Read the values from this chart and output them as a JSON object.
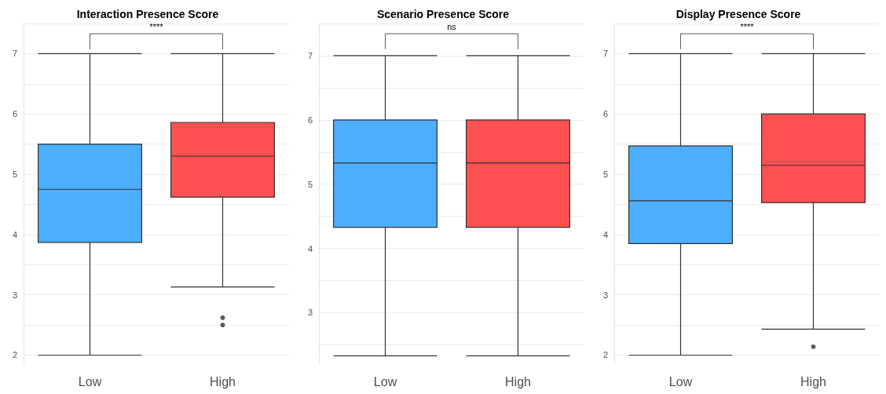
{
  "chart_data": [
    {
      "type": "box",
      "title": "Interaction Presence Score",
      "categories": [
        "Low",
        "High"
      ],
      "colors": [
        "#4dadfe",
        "#ff5052"
      ],
      "boxes": [
        {
          "low": 2,
          "q1": 3.87,
          "median": 4.75,
          "q3": 5.5,
          "high": 7
        },
        {
          "low": 3.13,
          "q1": 4.62,
          "median": 5.3,
          "q3": 5.86,
          "high": 7,
          "outliers": [
            2.62,
            2.5
          ]
        }
      ],
      "ylim": [
        1.85,
        7.5
      ],
      "yticks": [
        2,
        {
          "value": 2.5,
          "label": null
        },
        3,
        {
          "value": 3.5,
          "label": null
        },
        4,
        {
          "value": 4.5,
          "label": null
        },
        5,
        {
          "value": 5.5,
          "label": null
        },
        6,
        {
          "value": 6.5,
          "label": null
        },
        7,
        {
          "value": 7.5,
          "label": null
        }
      ],
      "grid": "y",
      "annotations": [
        "****"
      ]
    },
    {
      "type": "box",
      "title": "Scenario Presence Score",
      "categories": [
        "Low",
        "High"
      ],
      "colors": [
        "#4dadfe",
        "#ff5052"
      ],
      "boxes": [
        {
          "low": 2.33,
          "q1": 4.33,
          "median": 5.33,
          "q3": 6,
          "high": 7
        },
        {
          "low": 2.33,
          "q1": 4.33,
          "median": 5.33,
          "q3": 6,
          "high": 7
        }
      ],
      "ylim": [
        2.2,
        7.5
      ],
      "yticks": [
        {
          "value": 2.5,
          "label": null
        },
        3,
        {
          "value": 3.5,
          "label": null
        },
        4,
        {
          "value": 4.5,
          "label": null
        },
        5,
        {
          "value": 5.5,
          "label": null
        },
        6,
        {
          "value": 6.5,
          "label": null
        },
        7,
        {
          "value": 7.5,
          "label": null
        }
      ],
      "grid": "y",
      "annotations": [
        "ns"
      ]
    },
    {
      "type": "box",
      "title": "Display Presence Score",
      "categories": [
        "Low",
        "High"
      ],
      "colors": [
        "#4dadfe",
        "#ff5052"
      ],
      "boxes": [
        {
          "low": 2,
          "q1": 3.85,
          "median": 4.56,
          "q3": 5.47,
          "high": 7
        },
        {
          "low": 2.43,
          "q1": 4.53,
          "median": 5.15,
          "q3": 6,
          "high": 7,
          "outliers": [
            2.14
          ]
        }
      ],
      "ylim": [
        1.85,
        7.5
      ],
      "yticks": [
        2,
        {
          "value": 2.5,
          "label": null
        },
        3,
        {
          "value": 3.5,
          "label": null
        },
        4,
        {
          "value": 4.5,
          "label": null
        },
        5,
        {
          "value": 5.5,
          "label": null
        },
        6,
        {
          "value": 6.5,
          "label": null
        },
        7,
        {
          "value": 7.5,
          "label": null
        }
      ],
      "grid": "y",
      "annotations": [
        "****"
      ]
    }
  ]
}
